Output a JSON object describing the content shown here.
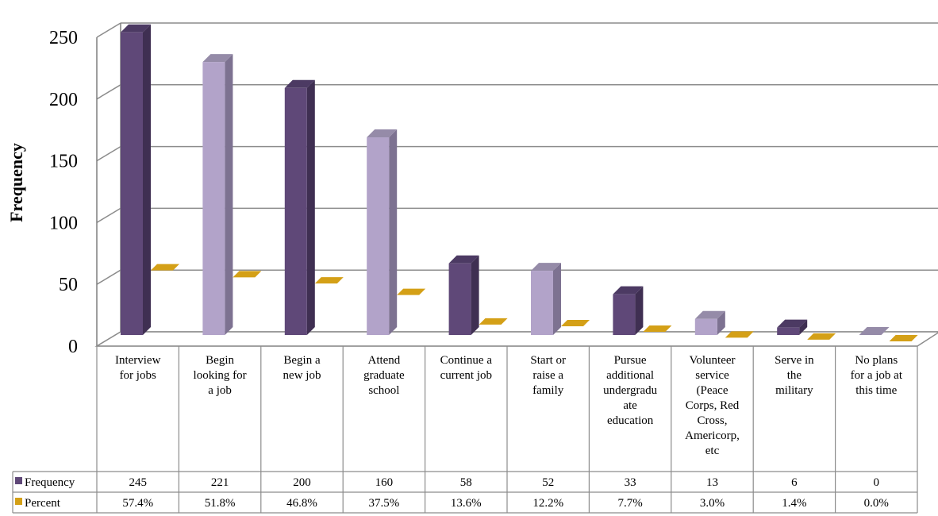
{
  "chart_data": {
    "type": "bar",
    "ylabel": "Frequency",
    "ylim": [
      0,
      250
    ],
    "yticks": [
      "0",
      "50",
      "100",
      "150",
      "200",
      "250"
    ],
    "grid": true,
    "legend": "data-table-rows",
    "categories": [
      [
        "Interview",
        "for jobs"
      ],
      [
        "Begin",
        "looking for",
        "a job"
      ],
      [
        "Begin a",
        "new job"
      ],
      [
        "Attend",
        "graduate",
        "school"
      ],
      [
        "Continue a",
        "current job"
      ],
      [
        "Start or",
        "raise a",
        "family"
      ],
      [
        "Pursue",
        "additional",
        "undergradu",
        "ate",
        "education"
      ],
      [
        "Volunteer",
        "service",
        "(Peace",
        "Corps, Red",
        "Cross,",
        "Americorp,",
        "etc"
      ],
      [
        "Serve in",
        "the",
        "military"
      ],
      [
        "No plans",
        "for a job at",
        "this time"
      ]
    ],
    "series": [
      {
        "name": "Frequency",
        "values": [
          245,
          221,
          200,
          160,
          58,
          52,
          33,
          13,
          6,
          0
        ],
        "labels": [
          "245",
          "221",
          "200",
          "160",
          "58",
          "52",
          "33",
          "13",
          "6",
          "0"
        ]
      },
      {
        "name": "Percent",
        "values": [
          57.4,
          51.8,
          46.8,
          37.5,
          13.6,
          12.2,
          7.7,
          3.0,
          1.4,
          0.0
        ],
        "labels": [
          "57.4%",
          "51.8%",
          "46.8%",
          "37.5%",
          "13.6%",
          "12.2%",
          "7.7%",
          "3.0%",
          "1.4%",
          "0.0%"
        ]
      }
    ],
    "colors": {
      "frequency_dark": "#5f4878",
      "frequency_light": "#b2a3c9",
      "percent": "#d4a017",
      "grid": "#8c8c8c",
      "axis": "#7f7f7f"
    }
  }
}
